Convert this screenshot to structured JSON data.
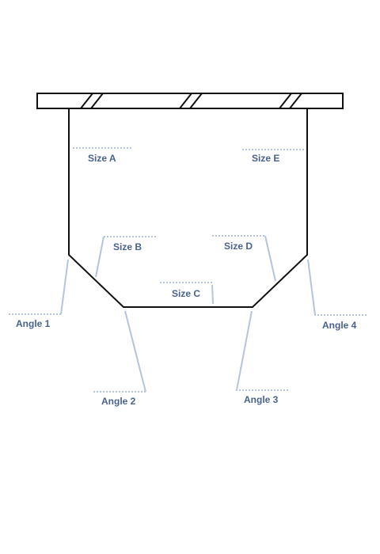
{
  "colors": {
    "outline": "#111111",
    "leader": "#b4c4dc",
    "label": "#4a6290",
    "background": "#ffffff"
  },
  "labels": {
    "size_a": "Size A",
    "size_b": "Size B",
    "size_c": "Size C",
    "size_d": "Size D",
    "size_e": "Size E",
    "angle_1": "Angle 1",
    "angle_2": "Angle 2",
    "angle_3": "Angle 3",
    "angle_4": "Angle 4"
  }
}
